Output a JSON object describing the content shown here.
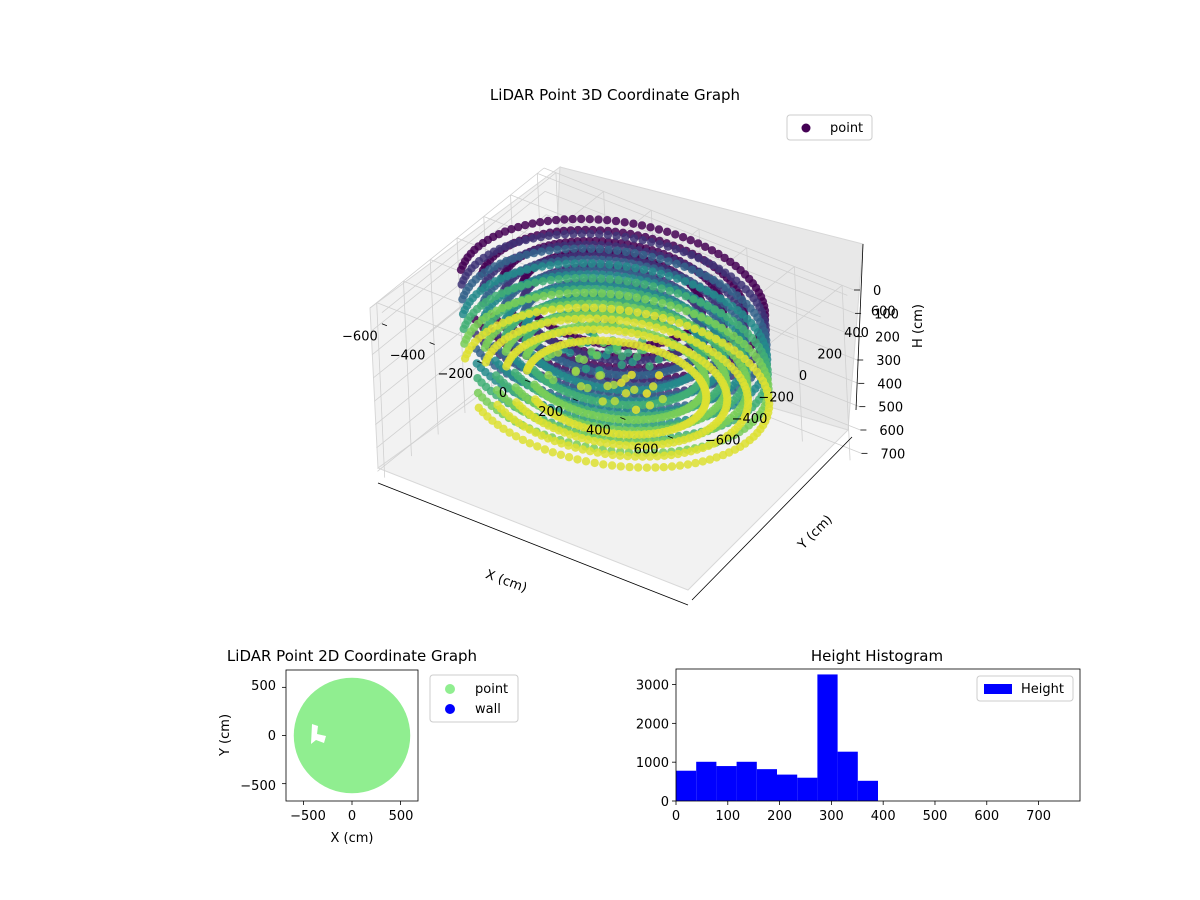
{
  "chart_data": [
    {
      "type": "scatter",
      "projection": "3d",
      "title": "LiDAR Point 3D Coordinate Graph",
      "xlabel": "X (cm)",
      "ylabel": "Y (cm)",
      "zlabel": "H (cm)",
      "xticks": [
        "−600",
        "−400",
        "−200",
        "0",
        "200",
        "400",
        "600"
      ],
      "yticks": [
        "−600",
        "−400",
        "−200",
        "0",
        "200",
        "400",
        "600"
      ],
      "zticks": [
        "0",
        "100",
        "200",
        "300",
        "400",
        "500",
        "600",
        "700"
      ],
      "xlim": [
        -650,
        650
      ],
      "ylim": [
        -650,
        650
      ],
      "zlim": [
        0,
        750
      ],
      "z_inverted": true,
      "legend": {
        "label": "point",
        "color": "#440154",
        "placement": "upper-right"
      },
      "colormap": "viridis",
      "grid": true,
      "series": [
        {
          "shape": "ring",
          "center": [
            0,
            0
          ],
          "r_inner": 330,
          "r_outer": 560,
          "h_range": [
            0,
            380
          ],
          "gap_angle_deg": [
            200,
            235
          ]
        }
      ]
    },
    {
      "type": "scatter",
      "title": "LiDAR Point 2D Coordinate Graph",
      "xlabel": "X (cm)",
      "ylabel": "Y (cm)",
      "xticks": [
        "−500",
        "0",
        "500"
      ],
      "yticks": [
        "500",
        "0",
        "−500"
      ],
      "xlim": [
        -680,
        680
      ],
      "ylim": [
        -680,
        680
      ],
      "legend_placement": "outside-right",
      "series": [
        {
          "name": "point",
          "color": "#90ee90",
          "shape": "disc",
          "center": [
            0,
            0
          ],
          "radius": 600
        },
        {
          "name": "wall",
          "color": "#0000ff",
          "points": []
        }
      ]
    },
    {
      "type": "bar",
      "subtype": "histogram",
      "title": "Height Histogram",
      "xticks": [
        "0",
        "100",
        "200",
        "300",
        "400",
        "500",
        "600",
        "700"
      ],
      "yticks": [
        "0",
        "1000",
        "2000",
        "3000"
      ],
      "xlim": [
        0,
        780
      ],
      "ylim": [
        0,
        3400
      ],
      "bin_width": 39,
      "bin_starts": [
        0,
        39,
        78,
        117,
        156,
        195,
        234,
        273,
        312,
        351
      ],
      "values": [
        780,
        1010,
        900,
        1010,
        820,
        680,
        600,
        3260,
        1270,
        520
      ],
      "color": "#0000ff",
      "legend": {
        "label": "Height",
        "placement": "upper-right"
      }
    }
  ]
}
